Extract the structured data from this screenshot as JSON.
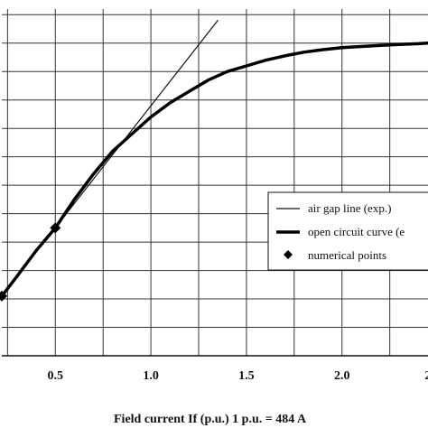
{
  "chart_data": {
    "type": "line",
    "title": "",
    "xlabel": "Field current  If (p.u.)   1 p.u. = 484 A",
    "ylabel": "",
    "xlim": [
      0.22,
      2.45
    ],
    "ylim": [
      0.0,
      1.22
    ],
    "x_ticks": [
      {
        "value": 0.5,
        "label": "0.5"
      },
      {
        "value": 1.0,
        "label": "1.0"
      },
      {
        "value": 1.5,
        "label": "1.5"
      },
      {
        "value": 2.0,
        "label": "2.0"
      },
      {
        "value": 2.45,
        "label": "2"
      }
    ],
    "x_gridlines": [
      0.25,
      0.5,
      0.75,
      1.0,
      1.25,
      1.5,
      1.75,
      2.0,
      2.25
    ],
    "y_gridlines": [
      0.0,
      0.1,
      0.2,
      0.3,
      0.4,
      0.5,
      0.6,
      0.7,
      0.8,
      0.9,
      1.0,
      1.1,
      1.2
    ],
    "grid": true,
    "legend_position": "right",
    "series": [
      {
        "name": "air gap line (exp.)",
        "style": "thin",
        "color": "#111111",
        "x": [
          0.22,
          1.35
        ],
        "y": [
          0.21,
          1.18
        ]
      },
      {
        "name": "open circuit curve (e",
        "style": "thick",
        "color": "#000000",
        "x": [
          0.22,
          0.3,
          0.4,
          0.5,
          0.6,
          0.7,
          0.75,
          0.8,
          0.9,
          1.0,
          1.1,
          1.2,
          1.3,
          1.4,
          1.5,
          1.6,
          1.7,
          1.8,
          1.9,
          2.0,
          2.1,
          2.2,
          2.3,
          2.4,
          2.45
        ],
        "y": [
          0.21,
          0.28,
          0.37,
          0.45,
          0.55,
          0.64,
          0.68,
          0.72,
          0.78,
          0.84,
          0.89,
          0.93,
          0.97,
          1.0,
          1.02,
          1.04,
          1.055,
          1.068,
          1.077,
          1.084,
          1.088,
          1.092,
          1.095,
          1.098,
          1.1
        ]
      },
      {
        "name": "numerical points",
        "style": "marker",
        "color": "#000000",
        "x": [
          0.22,
          0.5
        ],
        "y": [
          0.21,
          0.45
        ]
      }
    ]
  }
}
